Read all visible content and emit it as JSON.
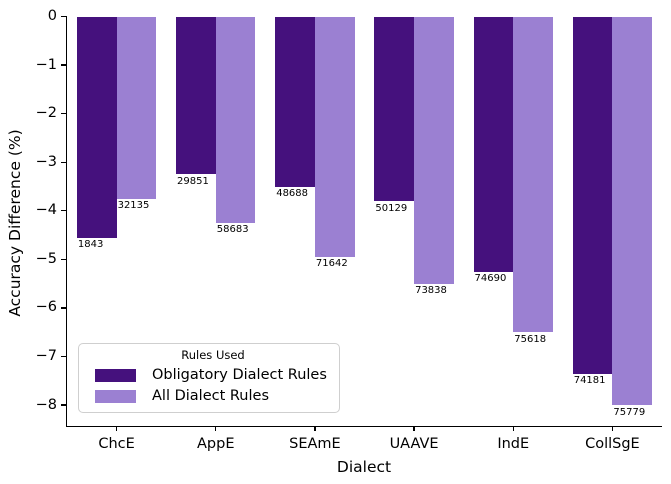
{
  "chart_data": {
    "type": "bar",
    "title": "",
    "xlabel": "Dialect",
    "ylabel": "Accuracy Difference (%)",
    "categories": [
      "ChcE",
      "AppE",
      "SEAmE",
      "UAAVE",
      "IndE",
      "CollSgE"
    ],
    "series": [
      {
        "name": "Obligatory Dialect Rules",
        "color": "#45117d",
        "values": [
          -4.55,
          -3.25,
          -3.5,
          -3.8,
          -5.25,
          -7.35
        ],
        "bar_labels": [
          "1843",
          "29851",
          "48688",
          "50129",
          "74690",
          "74181"
        ]
      },
      {
        "name": "All Dialect Rules",
        "color": "#9b80d2",
        "values": [
          -3.75,
          -4.25,
          -4.95,
          -5.5,
          -6.5,
          -8.0
        ],
        "bar_labels": [
          "32135",
          "58683",
          "71642",
          "73838",
          "75618",
          "75779"
        ]
      }
    ],
    "ylim": [
      -8.42,
      0
    ],
    "yticks": [
      0,
      -1,
      -2,
      -3,
      -4,
      -5,
      -6,
      -7,
      -8
    ],
    "ytick_labels": [
      "0",
      "−1",
      "−2",
      "−3",
      "−4",
      "−5",
      "−6",
      "−7",
      "−8"
    ],
    "grid": false,
    "legend": {
      "title": "Rules Used",
      "position": "lower left"
    }
  }
}
